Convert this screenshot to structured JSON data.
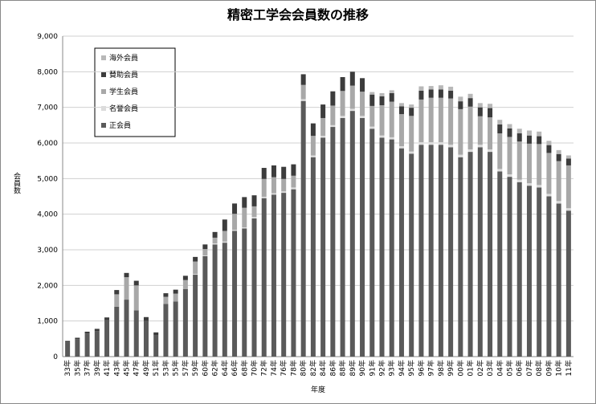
{
  "chart_data": {
    "type": "stacked_bar",
    "title": "精密工学会会員数の推移",
    "x_label": "年度",
    "y_label": "会員数",
    "categories": [
      "33年",
      "35年",
      "37年",
      "39年",
      "41年",
      "43年",
      "45年",
      "47年",
      "49年",
      "51年",
      "53年",
      "55年",
      "57年",
      "59年",
      "60年",
      "62年",
      "64年",
      "66年",
      "68年",
      "70年",
      "72年",
      "74年",
      "76年",
      "78年",
      "80年",
      "82年",
      "84年",
      "86年",
      "88年",
      "89年",
      "90年",
      "91年",
      "92年",
      "93年",
      "94年",
      "95年",
      "96年",
      "97年",
      "98年",
      "99年",
      "00年",
      "01年",
      "02年",
      "03年",
      "04年",
      "05年",
      "06年",
      "07年",
      "08年",
      "09年",
      "10年",
      "11年"
    ],
    "series": [
      {
        "name": "正会員",
        "color": "#5a5a5a",
        "values": [
          400,
          490,
          650,
          720,
          1020,
          1400,
          1600,
          1300,
          1000,
          600,
          1480,
          1550,
          1900,
          2300,
          2820,
          3150,
          3200,
          3530,
          3600,
          3880,
          4450,
          4550,
          4600,
          4700,
          7180,
          5600,
          6150,
          6450,
          6700,
          6900,
          6700,
          6400,
          6150,
          6100,
          5850,
          5700,
          5950,
          5950,
          5950,
          5880,
          5600,
          5750,
          5880,
          5750,
          5200,
          5050,
          4900,
          4800,
          4750,
          4500,
          4300,
          4100
        ]
      },
      {
        "name": "名誉会員",
        "color": "#dcdcdc",
        "values": [
          0,
          0,
          0,
          0,
          0,
          0,
          0,
          0,
          0,
          0,
          0,
          0,
          0,
          20,
          20,
          30,
          30,
          30,
          30,
          40,
          40,
          40,
          40,
          50,
          50,
          50,
          50,
          50,
          60,
          60,
          60,
          60,
          60,
          60,
          60,
          60,
          70,
          70,
          70,
          70,
          70,
          70,
          70,
          70,
          70,
          70,
          70,
          70,
          70,
          70,
          70,
          70
        ]
      },
      {
        "name": "学生会員",
        "color": "#a8a8a8",
        "values": [
          0,
          0,
          0,
          0,
          0,
          350,
          630,
          700,
          0,
          0,
          200,
          220,
          250,
          350,
          180,
          160,
          300,
          450,
          550,
          300,
          500,
          450,
          350,
          330,
          400,
          550,
          500,
          550,
          700,
          650,
          680,
          580,
          850,
          1000,
          900,
          1000,
          1200,
          1250,
          1250,
          1300,
          1280,
          1200,
          800,
          900,
          1000,
          1050,
          1070,
          1110,
          1150,
          1150,
          1120,
          1200
        ]
      },
      {
        "name": "賛助会員",
        "color": "#3c3c3c",
        "values": [
          40,
          40,
          50,
          60,
          80,
          120,
          120,
          130,
          110,
          80,
          100,
          110,
          120,
          130,
          130,
          160,
          320,
          290,
          300,
          310,
          310,
          330,
          340,
          320,
          300,
          350,
          380,
          400,
          390,
          390,
          380,
          320,
          250,
          240,
          220,
          230,
          250,
          230,
          230,
          220,
          220,
          240,
          250,
          260,
          250,
          240,
          230,
          230,
          220,
          220,
          200,
          190
        ]
      },
      {
        "name": "海外会員",
        "color": "#b8b8b8",
        "values": [
          0,
          0,
          0,
          0,
          0,
          0,
          0,
          0,
          0,
          0,
          0,
          0,
          0,
          0,
          0,
          0,
          0,
          0,
          0,
          0,
          0,
          0,
          0,
          0,
          0,
          0,
          0,
          0,
          0,
          0,
          0,
          70,
          90,
          80,
          90,
          90,
          120,
          100,
          120,
          110,
          130,
          120,
          120,
          120,
          130,
          120,
          130,
          140,
          130,
          120,
          110,
          90
        ]
      }
    ],
    "ylim": [
      0,
      9000
    ],
    "yticks": [
      0,
      {
        "value": 1000,
        "label": "1,000"
      },
      {
        "value": 2000,
        "label": "2,000"
      },
      {
        "value": 3000,
        "label": "3,000"
      },
      {
        "value": 4000,
        "label": "4,000"
      },
      {
        "value": 5000,
        "label": "5,000"
      },
      {
        "value": 6000,
        "label": "6,000"
      },
      {
        "value": 7000,
        "label": "7,000"
      },
      {
        "value": 8000,
        "label": "8,000"
      },
      {
        "value": 9000,
        "label": "9,000"
      }
    ],
    "grid": true
  }
}
